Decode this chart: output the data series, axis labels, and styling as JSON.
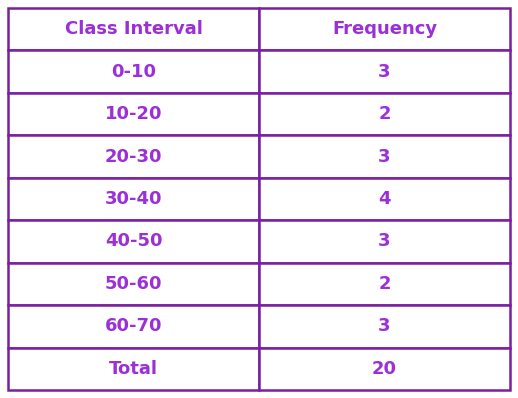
{
  "col1_header": "Class Interval",
  "col2_header": "Frequency",
  "rows": [
    [
      "0-10",
      "3"
    ],
    [
      "10-20",
      "2"
    ],
    [
      "20-30",
      "3"
    ],
    [
      "30-40",
      "4"
    ],
    [
      "40-50",
      "3"
    ],
    [
      "50-60",
      "2"
    ],
    [
      "60-70",
      "3"
    ],
    [
      "Total",
      "20"
    ]
  ],
  "header_bg": "#ffffff",
  "row_bg": "#ffffff",
  "text_color": "#9b30d9",
  "border_color": "#7b1fa2",
  "header_fontsize": 13,
  "cell_fontsize": 13,
  "fig_bg": "#ffffff",
  "border_linewidth": 1.8,
  "col_split": 0.5
}
